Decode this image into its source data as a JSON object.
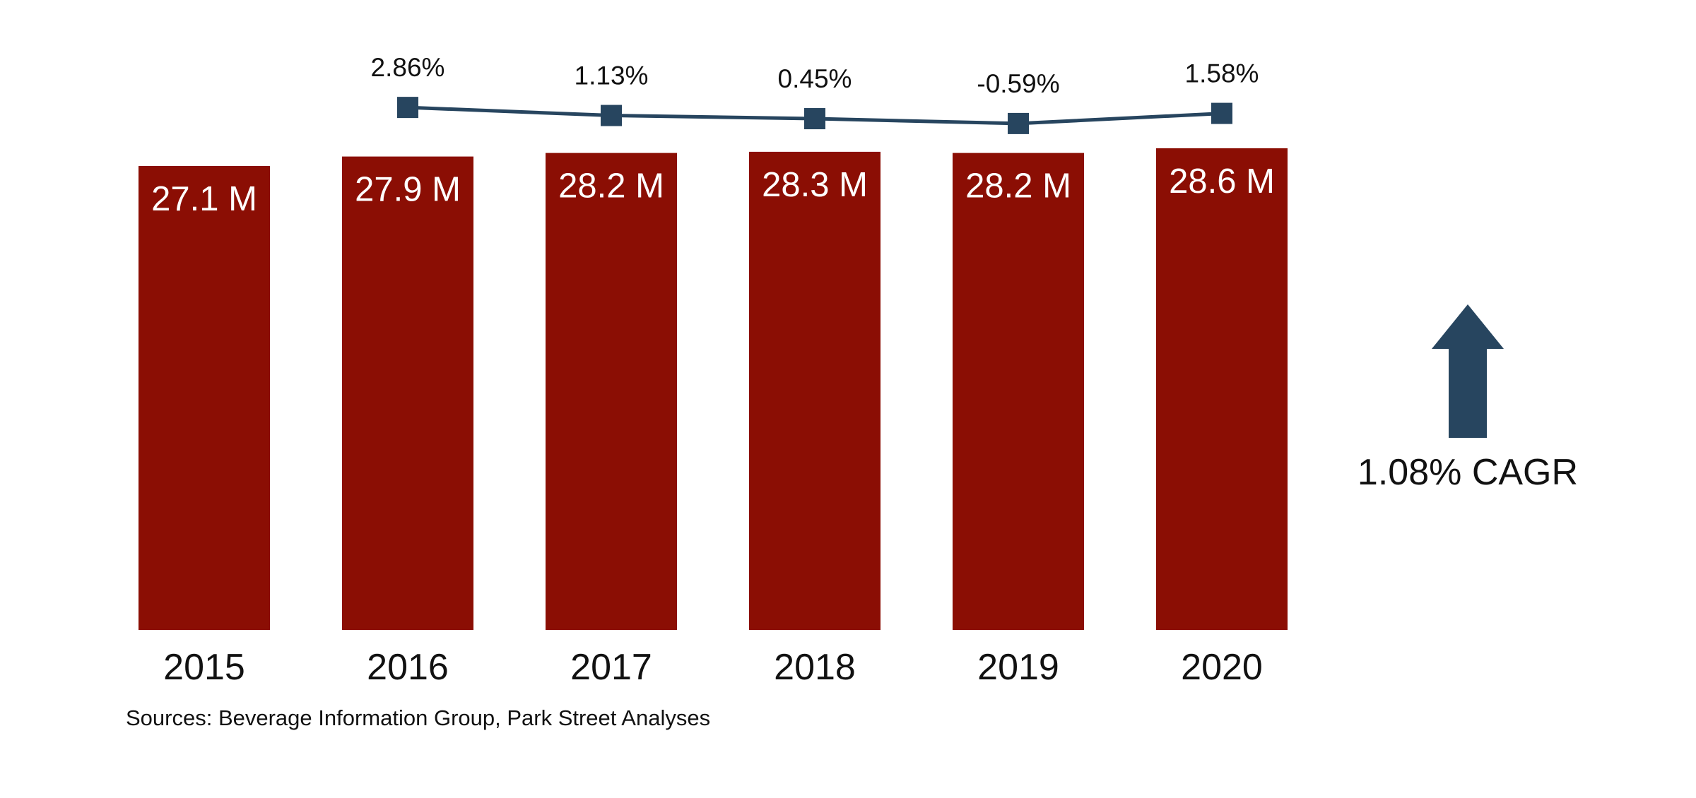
{
  "chart_data": {
    "type": "bar",
    "categories": [
      "2015",
      "2016",
      "2017",
      "2018",
      "2019",
      "2020"
    ],
    "values": [
      27.1,
      27.9,
      28.2,
      28.3,
      28.2,
      28.6
    ],
    "value_labels": [
      "27.1 M",
      "27.9 M",
      "28.2 M",
      "28.3 M",
      "28.2 M",
      "28.6 M"
    ],
    "bar_color": "#8B0E04",
    "growth_series": {
      "type": "line",
      "categories": [
        "2016",
        "2017",
        "2018",
        "2019",
        "2020"
      ],
      "values": [
        2.86,
        1.13,
        0.45,
        -0.59,
        1.58
      ],
      "labels": [
        "2.86%",
        "1.13%",
        "0.45%",
        "-0.59%",
        "1.58%"
      ],
      "color": "#27455F",
      "marker": "square"
    },
    "cagr": {
      "label": "1.08% CAGR",
      "arrow_direction": "up",
      "icon": "up-arrow-icon",
      "color": "#27455F"
    },
    "source_note": "Sources: Beverage Information Group, Park Street Analyses",
    "title": "",
    "xlabel": "",
    "ylabel": "",
    "grid": false,
    "legend": "none"
  }
}
